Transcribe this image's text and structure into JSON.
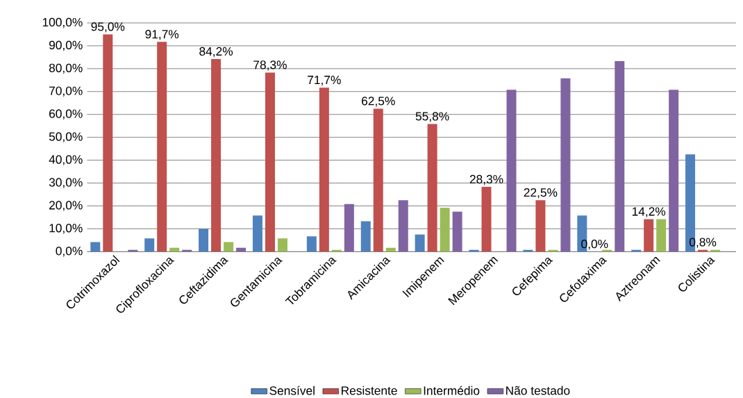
{
  "chart_data": {
    "type": "bar",
    "categories": [
      "Cotrimoxazol",
      "Ciprofloxacina",
      "Ceftazidima",
      "Gentamicina",
      "Tobramicina",
      "Amicacina",
      "Imipenem",
      "Meropenem",
      "Cefepima",
      "Cefotaxima",
      "Aztreonam",
      "Colistina"
    ],
    "series": [
      {
        "name": "Sensível",
        "color": "#4f81bd",
        "values": [
          4.2,
          5.8,
          10.0,
          15.8,
          6.7,
          13.3,
          7.5,
          0.8,
          0.8,
          15.8,
          0.8,
          42.5
        ]
      },
      {
        "name": "Resistente",
        "color": "#c0504d",
        "values": [
          95.0,
          91.7,
          84.2,
          78.3,
          71.7,
          62.5,
          55.8,
          28.3,
          22.5,
          0.0,
          14.2,
          0.8
        ],
        "value_labels": [
          "95,0%",
          "91,7%",
          "84,2%",
          "78,3%",
          "71,7%",
          "62,5%",
          "55,8%",
          "28,3%",
          "22,5%",
          "0,0%",
          "14,2%",
          "0,8%"
        ]
      },
      {
        "name": "Intermédio",
        "color": "#9bbb59",
        "values": [
          0,
          1.7,
          4.2,
          5.8,
          0.8,
          1.7,
          19.2,
          0,
          0.8,
          0.8,
          14.2,
          0.8
        ]
      },
      {
        "name": "Não testado",
        "color": "#8064a2",
        "values": [
          0.8,
          0.8,
          1.7,
          0,
          20.8,
          22.5,
          17.5,
          70.8,
          75.8,
          83.3,
          70.8,
          0
        ]
      }
    ],
    "ylim": [
      0,
      100
    ],
    "yticks": [
      {
        "value": 0,
        "label": "0,0%"
      },
      {
        "value": 10,
        "label": "10,0%"
      },
      {
        "value": 20,
        "label": "20,0%"
      },
      {
        "value": 30,
        "label": "30,0%"
      },
      {
        "value": 40,
        "label": "40,0%"
      },
      {
        "value": 50,
        "label": "50,0%"
      },
      {
        "value": 60,
        "label": "60,0%"
      },
      {
        "value": 70,
        "label": "70,0%"
      },
      {
        "value": 80,
        "label": "80,0%"
      },
      {
        "value": 90,
        "label": "90,0%"
      },
      {
        "value": 100,
        "label": "100,0%"
      }
    ],
    "grid": "y",
    "legend": "bottom"
  }
}
